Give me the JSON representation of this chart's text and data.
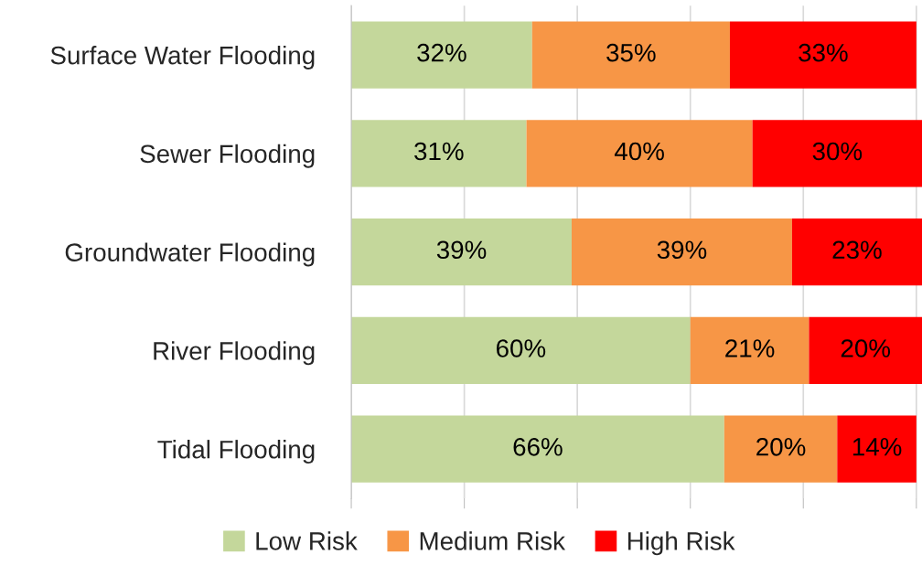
{
  "chart_data": {
    "type": "bar",
    "orientation": "horizontal",
    "stacked": true,
    "categories": [
      "Surface Water Flooding",
      "Sewer Flooding",
      "Groundwater Flooding",
      "River Flooding",
      "Tidal Flooding"
    ],
    "series": [
      {
        "name": "Low Risk",
        "color": "#c4d79b",
        "values": [
          32,
          31,
          39,
          60,
          66
        ],
        "value_labels": [
          "32%",
          "31%",
          "39%",
          "60%",
          "66%"
        ]
      },
      {
        "name": "Medium Risk",
        "color": "#f79646",
        "values": [
          35,
          40,
          39,
          21,
          20
        ],
        "value_labels": [
          "35%",
          "40%",
          "39%",
          "21%",
          "20%"
        ]
      },
      {
        "name": "High Risk",
        "color": "#ff0000",
        "values": [
          33,
          30,
          23,
          20,
          14
        ],
        "value_labels": [
          "33%",
          "30%",
          "23%",
          "20%",
          "14%"
        ]
      }
    ],
    "tick_labels": "y",
    "grid": "x",
    "legend": "bottom"
  }
}
